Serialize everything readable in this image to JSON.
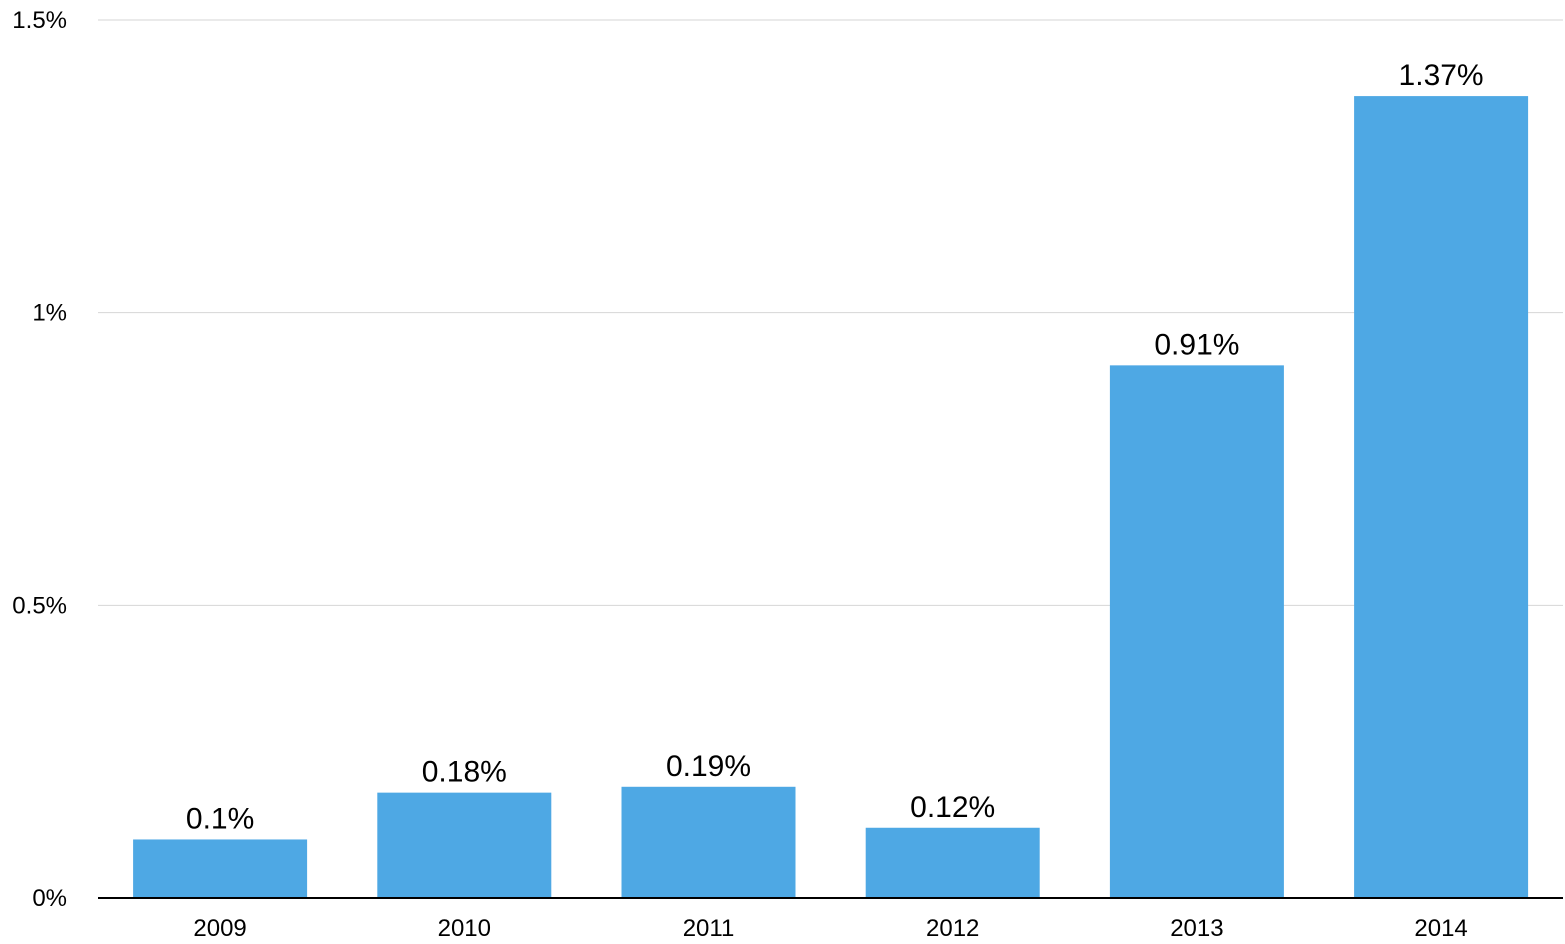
{
  "chart_data": {
    "type": "bar",
    "categories": [
      "2009",
      "2010",
      "2011",
      "2012",
      "2013",
      "2014"
    ],
    "values": [
      0.1,
      0.18,
      0.19,
      0.12,
      0.91,
      1.37
    ],
    "data_labels": [
      "0.1%",
      "0.18%",
      "0.19%",
      "0.12%",
      "0.91%",
      "1.37%"
    ],
    "y_ticks": [
      {
        "value": 0,
        "label": "0%"
      },
      {
        "value": 0.5,
        "label": "0.5%"
      },
      {
        "value": 1,
        "label": "1%"
      },
      {
        "value": 1.5,
        "label": "1.5%"
      }
    ],
    "ylim": [
      0,
      1.5
    ],
    "title": "",
    "xlabel": "",
    "ylabel": "",
    "grid": true,
    "legend": "none",
    "bar_color": "#4ea8e4"
  }
}
